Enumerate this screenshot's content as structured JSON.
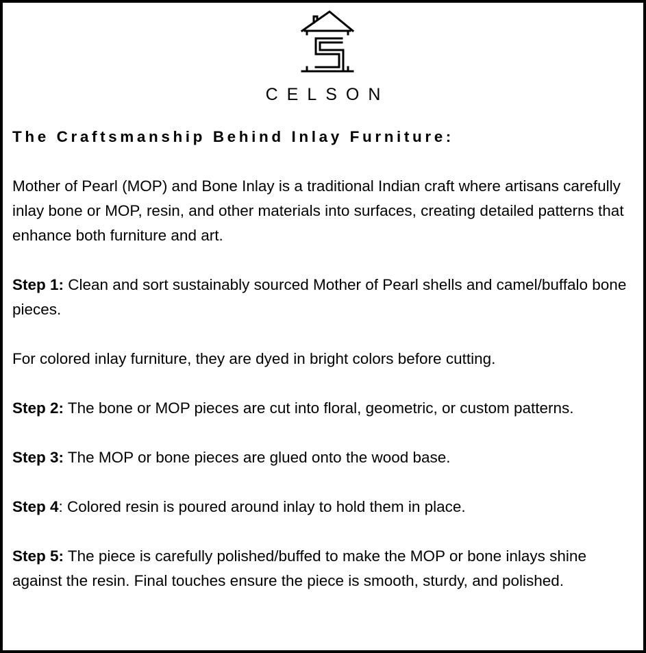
{
  "brand": {
    "name": "CELSON",
    "logo_icon": "house-s-logo-icon"
  },
  "heading": "The Craftsmanship Behind Inlay Furniture:",
  "intro": "Mother of Pearl (MOP) and Bone Inlay is a traditional Indian craft where artisans carefully inlay bone or MOP, resin, and other materials into surfaces, creating detailed patterns that enhance both furniture and art.",
  "steps": [
    {
      "label": "Step 1:",
      "text": " Clean and sort sustainably sourced Mother of Pearl shells and camel/buffalo bone pieces."
    },
    {
      "note": "For colored inlay furniture, they are dyed in bright colors before cutting."
    },
    {
      "label": "Step 2:",
      "text": " The bone or MOP pieces are cut into floral, geometric, or custom patterns."
    },
    {
      "label": "Step 3:",
      "text": " The MOP or bone pieces are glued onto the wood base."
    },
    {
      "label": "Step 4",
      "text": ": Colored resin is poured around inlay to hold them in place."
    },
    {
      "label": "Step 5:",
      "text": " The piece is carefully polished/buffed to make the MOP or bone inlays shine against the resin. Final touches ensure the piece is smooth, sturdy, and polished."
    }
  ]
}
